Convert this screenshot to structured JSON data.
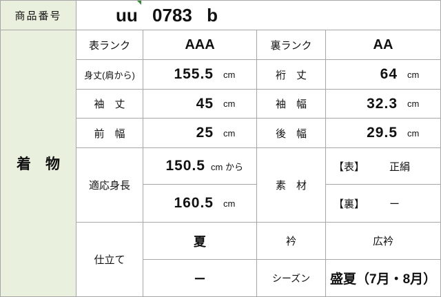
{
  "colors": {
    "green_bg": "#e9f1de",
    "border": "#a6a6a6",
    "marker_green": "#2e8b2e",
    "text": "#111111"
  },
  "header": {
    "label": "商品番号",
    "value": "uu 0783 b"
  },
  "category": {
    "label": "着　物"
  },
  "spec": {
    "front_rank": {
      "label": "表ランク",
      "value": "AAA"
    },
    "back_rank": {
      "label": "裏ランク",
      "value": "AA"
    },
    "body_length": {
      "label": "身丈(肩から)",
      "value": "155.5",
      "unit": "cm"
    },
    "yuki_length": {
      "label": "裄　丈",
      "value": "64",
      "unit": "cm"
    },
    "sleeve_length": {
      "label": "袖　丈",
      "value": "45",
      "unit": "cm"
    },
    "sleeve_width": {
      "label": "袖　幅",
      "value": "32.3",
      "unit": "cm"
    },
    "front_width": {
      "label": "前　幅",
      "value": "25",
      "unit": "cm"
    },
    "back_width": {
      "label": "後　幅",
      "value": "29.5",
      "unit": "cm"
    },
    "height_range": {
      "label": "適応身長",
      "from_value": "150.5",
      "from_unit": "cm から",
      "to_value": "160.5",
      "to_unit": "cm"
    },
    "material": {
      "label": "素　材",
      "front_tag": "【表】",
      "front_value": "正絹",
      "back_tag": "【裏】",
      "back_value": "ー"
    },
    "tailoring": {
      "label": "仕立て",
      "value_top": "夏",
      "value_bottom": "ー"
    },
    "collar": {
      "label": "衿",
      "value": "広衿"
    },
    "season": {
      "label": "シーズン",
      "value": "盛夏（7月・8月）"
    }
  }
}
